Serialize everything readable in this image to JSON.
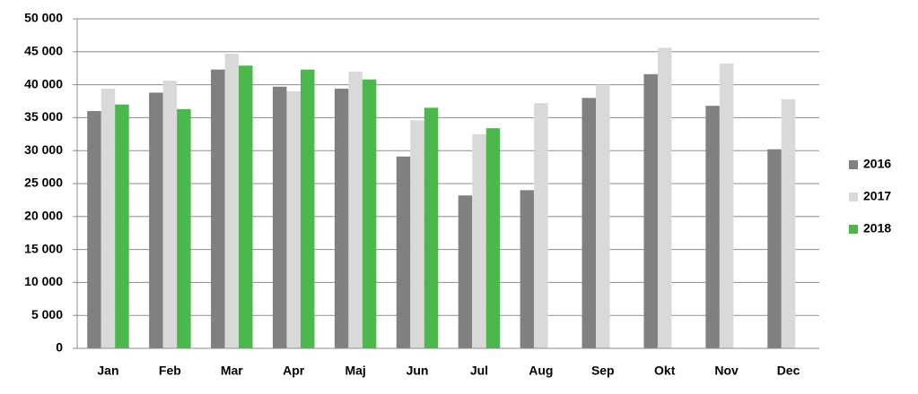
{
  "chart_data": {
    "type": "bar",
    "categories": [
      "Jan",
      "Feb",
      "Mar",
      "Apr",
      "Maj",
      "Jun",
      "Jul",
      "Aug",
      "Sep",
      "Okt",
      "Nov",
      "Dec"
    ],
    "series": [
      {
        "name": "2016",
        "color": "#808080",
        "values": [
          36000,
          38800,
          42300,
          39700,
          39400,
          29100,
          23200,
          24000,
          38000,
          41600,
          36800,
          30200
        ]
      },
      {
        "name": "2017",
        "color": "#d9d9d9",
        "values": [
          39400,
          40600,
          44700,
          39000,
          42000,
          34600,
          32500,
          37200,
          40000,
          45600,
          43200,
          37800
        ]
      },
      {
        "name": "2018",
        "color": "#4cb84c",
        "values": [
          37000,
          36300,
          42900,
          42300,
          40800,
          36500,
          33400,
          null,
          null,
          null,
          null,
          null
        ]
      }
    ],
    "ylim": [
      0,
      50000
    ],
    "yticks": [
      0,
      {
        "value": 5000,
        "label": "5 000"
      },
      {
        "value": 10000,
        "label": "10 000"
      },
      {
        "value": 15000,
        "label": "15 000"
      },
      {
        "value": 20000,
        "label": "20 000"
      },
      {
        "value": 25000,
        "label": "25 000"
      },
      {
        "value": 30000,
        "label": "30 000"
      },
      {
        "value": 35000,
        "label": "35 000"
      },
      {
        "value": 40000,
        "label": "40 000"
      },
      {
        "value": 45000,
        "label": "45 000"
      },
      {
        "value": 50000,
        "label": "50 000"
      }
    ],
    "grid": true,
    "legend": "right"
  }
}
